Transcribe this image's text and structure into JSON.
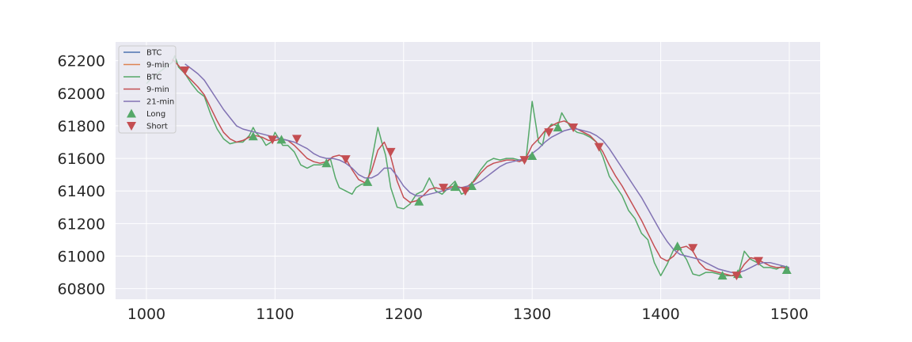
{
  "chart_data": {
    "type": "line",
    "title": "",
    "xlabel": "",
    "ylabel": "",
    "xlim": [
      976,
      1524
    ],
    "ylim": [
      60735,
      62315
    ],
    "xticks": [
      1000,
      1100,
      1200,
      1300,
      1400,
      1500
    ],
    "yticks": [
      60800,
      61000,
      61200,
      61400,
      61600,
      61800,
      62000,
      62200
    ],
    "grid": true,
    "legend_position": "top-left",
    "colors": {
      "plot_bg": "#eaeaf2",
      "grid": "#ffffff",
      "btc_blue": "#4c72b0",
      "ma9_orange": "#dd8452",
      "btc_green": "#55a868",
      "ma9_red": "#c44e52",
      "ma21_purple": "#8172b3"
    },
    "legend": [
      {
        "label": "BTC",
        "kind": "line",
        "color": "#4c72b0"
      },
      {
        "label": "9-min",
        "kind": "line",
        "color": "#dd8452"
      },
      {
        "label": "BTC",
        "kind": "line",
        "color": "#55a868"
      },
      {
        "label": "9-min",
        "kind": "line",
        "color": "#c44e52"
      },
      {
        "label": "21-min",
        "kind": "line",
        "color": "#8172b3"
      },
      {
        "label": "Long",
        "kind": "marker-up",
        "color": "#55a868"
      },
      {
        "label": "Short",
        "kind": "marker-down",
        "color": "#c44e52"
      }
    ],
    "series": [
      {
        "name": "BTC",
        "color": "#55a868",
        "x": [
          1000,
          1005,
          1010,
          1015,
          1020,
          1022,
          1025,
          1030,
          1035,
          1040,
          1045,
          1050,
          1055,
          1060,
          1065,
          1070,
          1075,
          1080,
          1083,
          1085,
          1090,
          1093,
          1097,
          1100,
          1103,
          1106,
          1110,
          1115,
          1120,
          1125,
          1130,
          1135,
          1140,
          1143,
          1147,
          1150,
          1155,
          1160,
          1163,
          1167,
          1172,
          1176,
          1180,
          1183,
          1186,
          1190,
          1195,
          1200,
          1205,
          1210,
          1215,
          1220,
          1225,
          1230,
          1235,
          1240,
          1245,
          1250,
          1255,
          1260,
          1265,
          1270,
          1275,
          1280,
          1285,
          1290,
          1295,
          1298,
          1300,
          1303,
          1305,
          1308,
          1310,
          1315,
          1320,
          1323,
          1326,
          1330,
          1335,
          1340,
          1345,
          1350,
          1355,
          1360,
          1365,
          1370,
          1375,
          1380,
          1385,
          1390,
          1395,
          1400,
          1405,
          1410,
          1415,
          1420,
          1425,
          1430,
          1435,
          1440,
          1445,
          1450,
          1455,
          1460,
          1465,
          1470,
          1475,
          1480,
          1485,
          1490,
          1495,
          1500
        ],
        "y": [
          62060,
          62100,
          62130,
          62160,
          62190,
          62230,
          62160,
          62120,
          62060,
          62010,
          61980,
          61870,
          61780,
          61720,
          61690,
          61700,
          61700,
          61740,
          61790,
          61760,
          61720,
          61680,
          61700,
          61760,
          61720,
          61680,
          61680,
          61640,
          61560,
          61540,
          61560,
          61560,
          61570,
          61600,
          61480,
          61420,
          61400,
          61380,
          61420,
          61440,
          61450,
          61620,
          61790,
          61700,
          61620,
          61420,
          61300,
          61290,
          61320,
          61380,
          61400,
          61480,
          61400,
          61380,
          61420,
          61460,
          61380,
          61400,
          61470,
          61530,
          61580,
          61600,
          61590,
          61600,
          61600,
          61590,
          61580,
          61800,
          61950,
          61800,
          61700,
          61680,
          61760,
          61810,
          61800,
          61880,
          61840,
          61790,
          61760,
          61750,
          61730,
          61700,
          61610,
          61490,
          61430,
          61370,
          61280,
          61230,
          61140,
          61100,
          60960,
          60880,
          60950,
          61040,
          61040,
          60980,
          60890,
          60880,
          60900,
          60900,
          60890,
          60880,
          60880,
          60880,
          61030,
          60980,
          60960,
          60930,
          60930,
          60920,
          60940,
          60920
        ]
      },
      {
        "name": "9-min",
        "color": "#c44e52",
        "x": [
          1020,
          1025,
          1030,
          1035,
          1040,
          1045,
          1050,
          1055,
          1060,
          1065,
          1070,
          1075,
          1080,
          1085,
          1090,
          1095,
          1100,
          1105,
          1110,
          1115,
          1120,
          1125,
          1130,
          1135,
          1140,
          1145,
          1150,
          1155,
          1160,
          1165,
          1170,
          1175,
          1180,
          1185,
          1190,
          1195,
          1200,
          1205,
          1210,
          1215,
          1220,
          1225,
          1230,
          1235,
          1240,
          1245,
          1250,
          1255,
          1260,
          1265,
          1270,
          1275,
          1280,
          1285,
          1290,
          1295,
          1300,
          1305,
          1310,
          1315,
          1320,
          1325,
          1330,
          1335,
          1340,
          1345,
          1350,
          1355,
          1360,
          1365,
          1370,
          1375,
          1380,
          1385,
          1390,
          1395,
          1400,
          1405,
          1410,
          1415,
          1420,
          1425,
          1430,
          1435,
          1440,
          1445,
          1450,
          1455,
          1460,
          1465,
          1470,
          1475,
          1480,
          1485,
          1490,
          1495,
          1500
        ],
        "y": [
          62210,
          62170,
          62120,
          62080,
          62040,
          61990,
          61910,
          61830,
          61760,
          61720,
          61700,
          61710,
          61730,
          61740,
          61730,
          61710,
          61710,
          61720,
          61710,
          61680,
          61640,
          61600,
          61580,
          61570,
          61580,
          61610,
          61620,
          61600,
          61530,
          61470,
          61450,
          61520,
          61650,
          61700,
          61610,
          61460,
          61360,
          61330,
          61340,
          61370,
          61410,
          61420,
          61410,
          61420,
          61430,
          61420,
          61430,
          61460,
          61510,
          61550,
          61570,
          61580,
          61590,
          61590,
          61580,
          61600,
          61680,
          61720,
          61770,
          61800,
          61820,
          61830,
          61810,
          61780,
          61760,
          61740,
          61700,
          61640,
          61560,
          61490,
          61430,
          61360,
          61290,
          61220,
          61140,
          61060,
          60990,
          60970,
          61000,
          61050,
          61060,
          61030,
          60960,
          60920,
          60910,
          60900,
          60890,
          60880,
          60890,
          60950,
          60990,
          60980,
          60960,
          60940,
          60930,
          60930,
          60920
        ]
      },
      {
        "name": "21-min",
        "color": "#8172b3",
        "x": [
          1030,
          1035,
          1040,
          1045,
          1050,
          1055,
          1060,
          1065,
          1070,
          1075,
          1080,
          1085,
          1090,
          1095,
          1100,
          1105,
          1110,
          1115,
          1120,
          1125,
          1130,
          1135,
          1140,
          1145,
          1150,
          1155,
          1160,
          1165,
          1170,
          1175,
          1180,
          1185,
          1190,
          1195,
          1200,
          1205,
          1210,
          1215,
          1220,
          1225,
          1230,
          1235,
          1240,
          1245,
          1250,
          1255,
          1260,
          1265,
          1270,
          1275,
          1280,
          1285,
          1290,
          1295,
          1300,
          1305,
          1310,
          1315,
          1320,
          1325,
          1330,
          1335,
          1340,
          1345,
          1350,
          1355,
          1360,
          1365,
          1370,
          1375,
          1380,
          1385,
          1390,
          1395,
          1400,
          1405,
          1410,
          1415,
          1420,
          1425,
          1430,
          1435,
          1440,
          1445,
          1450,
          1455,
          1460,
          1465,
          1470,
          1475,
          1480,
          1485,
          1490,
          1495,
          1500
        ],
        "y": [
          62180,
          62150,
          62120,
          62080,
          62020,
          61960,
          61900,
          61850,
          61800,
          61780,
          61770,
          61760,
          61750,
          61740,
          61730,
          61720,
          61710,
          61700,
          61680,
          61660,
          61630,
          61610,
          61600,
          61600,
          61590,
          61570,
          61540,
          61500,
          61480,
          61480,
          61500,
          61540,
          61540,
          61490,
          61430,
          61390,
          61370,
          61370,
          61380,
          61390,
          61400,
          61410,
          61420,
          61420,
          61430,
          61440,
          61460,
          61490,
          61520,
          61550,
          61570,
          61580,
          61590,
          61600,
          61630,
          61660,
          61700,
          61730,
          61750,
          61770,
          61780,
          61780,
          61770,
          61760,
          61740,
          61710,
          61660,
          61600,
          61540,
          61480,
          61420,
          61360,
          61290,
          61220,
          61150,
          61090,
          61040,
          61010,
          61000,
          60990,
          60980,
          60960,
          60940,
          60920,
          60910,
          60900,
          60900,
          60910,
          60930,
          60950,
          60960,
          60960,
          60950,
          60940,
          60930
        ]
      }
    ],
    "long_signals": {
      "x": [
        1083,
        1105,
        1140,
        1172,
        1212,
        1240,
        1253,
        1300,
        1320,
        1413,
        1448,
        1460,
        1498
      ],
      "y": [
        61735,
        61715,
        61570,
        61455,
        61335,
        61425,
        61430,
        61615,
        61790,
        61060,
        60880,
        60890,
        60915
      ]
    },
    "short_signals": {
      "x": [
        1030,
        1098,
        1117,
        1155,
        1190,
        1231,
        1248,
        1294,
        1313,
        1332,
        1352,
        1425,
        1459,
        1476
      ],
      "y": [
        62140,
        61715,
        61720,
        61595,
        61640,
        61420,
        61400,
        61590,
        61760,
        61790,
        61670,
        61050,
        60880,
        60970
      ]
    }
  }
}
